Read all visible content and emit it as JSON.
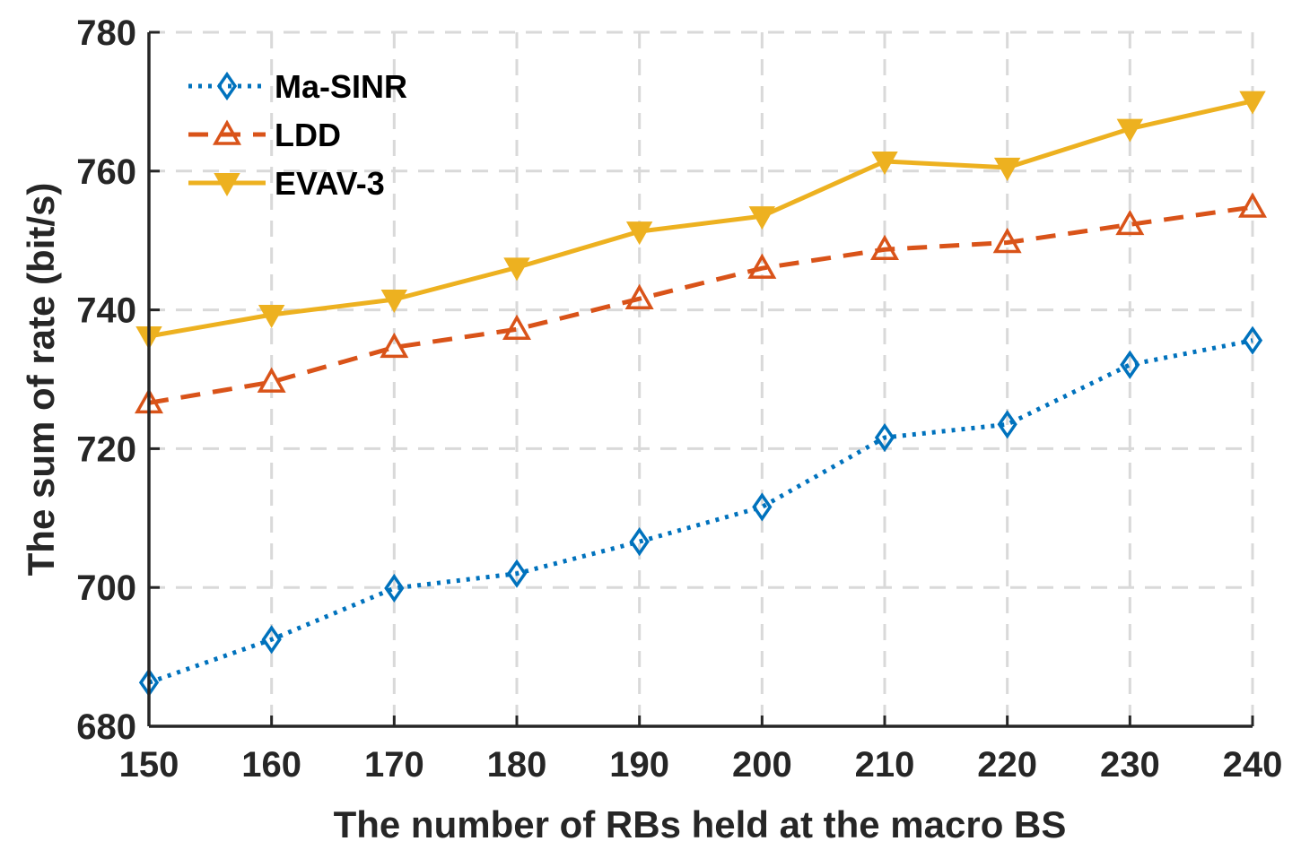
{
  "chart_data": {
    "type": "line",
    "xlabel": "The number of RBs held at the macro BS",
    "ylabel": "The sum of rate (bit/s)",
    "x": [
      150,
      160,
      170,
      180,
      190,
      200,
      210,
      220,
      230,
      240
    ],
    "xlim": [
      150,
      240
    ],
    "ylim": [
      680,
      780
    ],
    "xticks": [
      150,
      160,
      170,
      180,
      190,
      200,
      210,
      220,
      230,
      240
    ],
    "yticks": [
      680,
      700,
      720,
      740,
      760,
      780
    ],
    "grid": true,
    "legend_position": "top-left",
    "series": [
      {
        "name": "Ma-SINR",
        "color": "#0072BD",
        "line_style": "dotted",
        "marker": "diamond",
        "values": [
          686.3,
          692.5,
          699.9,
          702.0,
          706.6,
          711.6,
          721.6,
          723.5,
          732.1,
          735.6
        ]
      },
      {
        "name": "LDD",
        "color": "#D95319",
        "line_style": "dashed",
        "marker": "triangle-up",
        "values": [
          726.6,
          729.6,
          734.6,
          737.2,
          741.6,
          746.0,
          748.7,
          749.7,
          752.3,
          754.8
        ]
      },
      {
        "name": "EVAV-3",
        "color": "#EDB120",
        "line_style": "solid",
        "marker": "triangle-down",
        "values": [
          736.2,
          739.3,
          741.5,
          746.1,
          751.3,
          753.5,
          761.4,
          760.5,
          766.1,
          770.1
        ]
      }
    ]
  }
}
